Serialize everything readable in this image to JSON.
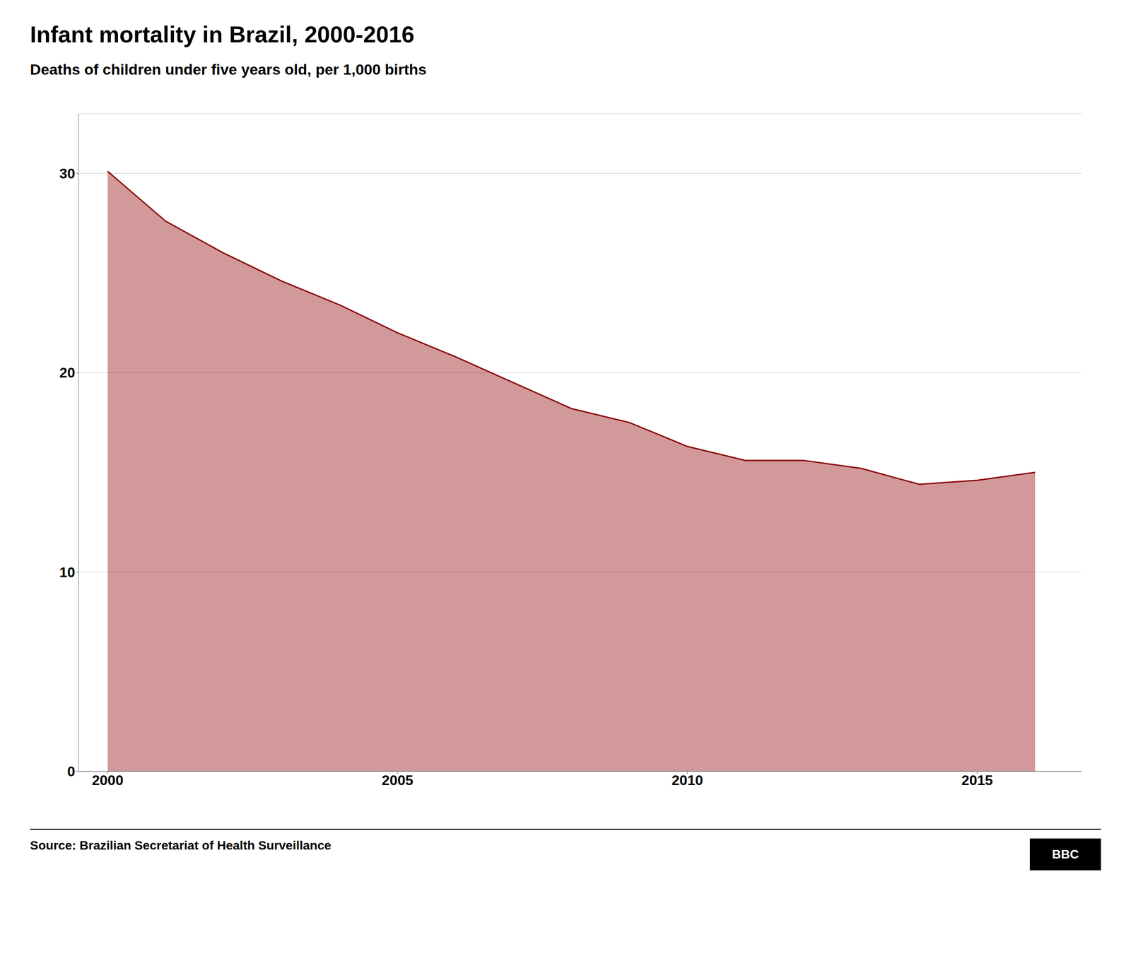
{
  "chart_data": {
    "type": "area",
    "title": "Infant mortality in Brazil, 2000-2016",
    "subtitle": "Deaths of children under five years old, per 1,000 births",
    "source": "Source: Brazilian Secretariat of Health Surveillance",
    "annotations": [
      "BBC"
    ],
    "x": [
      2000,
      2001,
      2002,
      2003,
      2004,
      2005,
      2006,
      2007,
      2008,
      2009,
      2010,
      2011,
      2012,
      2013,
      2014,
      2015,
      2016
    ],
    "values": [
      30.1,
      27.6,
      26.0,
      24.6,
      23.4,
      22.0,
      20.8,
      19.5,
      18.2,
      17.5,
      16.3,
      15.6,
      15.6,
      15.2,
      14.4,
      14.6,
      15.0
    ],
    "color": "#8B0000",
    "xlim": [
      1999.5,
      2016.8
    ],
    "xticks": [
      2000,
      2005,
      2010,
      2015
    ],
    "ylim": [
      0,
      33
    ],
    "yticks": [
      0,
      10,
      20,
      30
    ],
    "grid": true
  }
}
